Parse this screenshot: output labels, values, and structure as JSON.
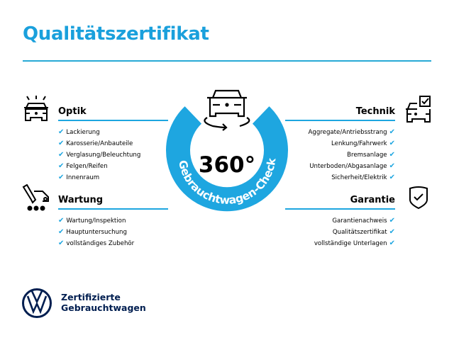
{
  "title": "Qualitätszertifikat",
  "colors": {
    "accent": "#1ea6e0",
    "title": "#1aa0dc",
    "brand_navy": "#001e50"
  },
  "center": {
    "big": "360°",
    "ring_text": "Gebrauchtwagen-Check",
    "icon": "car-rotate-icon"
  },
  "sections": {
    "optik": {
      "title": "Optik",
      "icon": "car-lights-icon",
      "items": [
        "Lackierung",
        "Karosserie/Anbauteile",
        "Verglasung/Beleuchtung",
        "Felgen/Reifen",
        "Innenraum"
      ]
    },
    "wartung": {
      "title": "Wartung",
      "icon": "service-car-icon",
      "items": [
        "Wartung/Inspektion",
        "Hauptuntersuchung",
        "vollständiges Zubehör"
      ]
    },
    "technik": {
      "title": "Technik",
      "icon": "car-checkbox-icon",
      "items": [
        "Aggregate/Antriebsstrang",
        "Lenkung/Fahrwerk",
        "Bremsanlage",
        "Unterboden/Abgasanlage",
        "Sicherheit/Elektrik"
      ]
    },
    "garantie": {
      "title": "Garantie",
      "icon": "shield-check-icon",
      "items": [
        "Garantienachweis",
        "Qualitätszertifikat",
        "vollständige Unterlagen"
      ]
    }
  },
  "check_glyph": "✔",
  "logo": {
    "line1": "Zertifizierte",
    "line2": "Gebrauchtwagen"
  }
}
